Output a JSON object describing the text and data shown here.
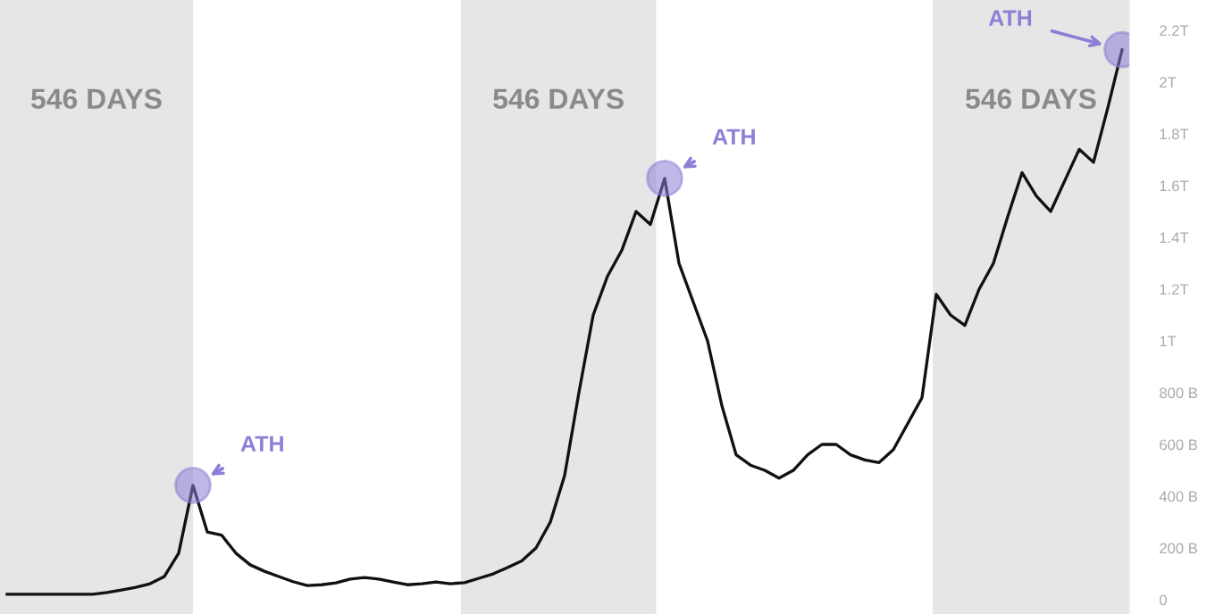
{
  "chart_data": {
    "type": "line",
    "categories": [
      null,
      null,
      null,
      null,
      null,
      null,
      null,
      null,
      null,
      null,
      null,
      null,
      null,
      null,
      null,
      null,
      null,
      null,
      null,
      null,
      null,
      null,
      null,
      null,
      null,
      null,
      null,
      null,
      null,
      null,
      null,
      null,
      null,
      null,
      null,
      null,
      null,
      null,
      null,
      null,
      null,
      null,
      null,
      null,
      null,
      null,
      null,
      null,
      null,
      null,
      null,
      null,
      null,
      null,
      null,
      null,
      null,
      null,
      null,
      null,
      null,
      null,
      null,
      null,
      null,
      null,
      null,
      null,
      null,
      null,
      null,
      null,
      null,
      null,
      null,
      null,
      null,
      null,
      null
    ],
    "series": [
      {
        "color": "#111111",
        "values": [
          21000000000,
          21000000000,
          21000000000,
          21000000000,
          21000000000,
          21000000000,
          21000000000,
          28000000000,
          38000000000,
          48000000000,
          62000000000,
          90000000000,
          180000000000,
          442000000000,
          262000000000,
          250000000000,
          180000000000,
          135000000000,
          110000000000,
          90000000000,
          70000000000,
          55000000000,
          58000000000,
          65000000000,
          80000000000,
          86000000000,
          80000000000,
          69000000000,
          58000000000,
          62000000000,
          69000000000,
          62000000000,
          66000000000,
          83000000000,
          100000000000,
          124000000000,
          150000000000,
          200000000000,
          300000000000,
          480000000000,
          800000000000,
          1100000000000,
          1250000000000,
          1350000000000,
          1500000000000,
          1450000000000,
          1628000000000,
          1300000000000,
          1150000000000,
          1000000000000,
          750000000000,
          560000000000,
          520000000000,
          500000000000,
          470000000000,
          500000000000,
          560000000000,
          600000000000,
          600000000000,
          560000000000,
          540000000000,
          530000000000,
          580000000000,
          680000000000,
          780000000000,
          1180000000000,
          1100000000000,
          1060000000000,
          1200000000000,
          1300000000000,
          1480000000000,
          1650000000000,
          1560000000000,
          1500000000000,
          1620000000000,
          1740000000000,
          1690000000000,
          1900000000000,
          2125000000000
        ]
      }
    ],
    "ylim": [
      -55000000000,
      2317000000000
    ],
    "yticks": [
      {
        "value": 0,
        "label": "0"
      },
      {
        "value": 200000000000,
        "label": "200 B"
      },
      {
        "value": 400000000000,
        "label": "400 B"
      },
      {
        "value": 600000000000,
        "label": "600 B"
      },
      {
        "value": 800000000000,
        "label": "800 B"
      },
      {
        "value": 1000000000000,
        "label": "1T"
      },
      {
        "value": 1200000000000,
        "label": "1.2T"
      },
      {
        "value": 1400000000000,
        "label": "1.4T"
      },
      {
        "value": 1600000000000,
        "label": "1.6T"
      },
      {
        "value": 1800000000000,
        "label": "1.8T"
      },
      {
        "value": 2000000000000,
        "label": "2T"
      },
      {
        "value": 2200000000000,
        "label": "2.2T"
      }
    ],
    "tick_labels": "y",
    "grid": false,
    "marker": "none",
    "line_style": "solid",
    "annotations": [
      "546 DAYS",
      "ATH",
      "546 DAYS",
      "ATH",
      "546 DAYS",
      "ATH"
    ]
  }
}
